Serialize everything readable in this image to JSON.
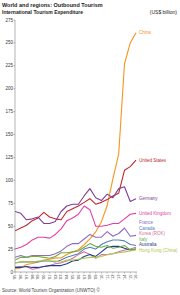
{
  "chart_data": {
    "type": "line",
    "title": "World and regions: Outbound Tourism",
    "subtitle": "International Tourism Expenditure",
    "y_label": "(US$ billion)",
    "source": "Source: World Tourism Organization (UNWTO) ©",
    "categories": [
      "'95",
      "'96",
      "'97",
      "'98",
      "'99",
      "'00",
      "'01",
      "'02",
      "'03",
      "'04",
      "'05",
      "'06",
      "'07",
      "'08",
      "'09",
      "'10",
      "'11",
      "'12",
      "'13",
      "'14",
      "'15",
      "'16"
    ],
    "ylim": [
      0,
      275
    ],
    "yticks": [
      0,
      25,
      50,
      75,
      100,
      125,
      150,
      175,
      200,
      225,
      250,
      275
    ],
    "grid": false,
    "series": [
      {
        "name": "China",
        "color": "#f7941d",
        "values": [
          3.7,
          4.5,
          8.1,
          9.2,
          10.9,
          13.1,
          13.9,
          15.4,
          15.2,
          19.1,
          21.8,
          24.3,
          29.8,
          36.2,
          43.7,
          54.9,
          72.6,
          102,
          129,
          227,
          250,
          261
        ]
      },
      {
        "name": "United States",
        "color": "#c0282d",
        "values": [
          45,
          48,
          51,
          56,
          59,
          65,
          60,
          58,
          57,
          66,
          69,
          72,
          76,
          80,
          74,
          76,
          79,
          83,
          86,
          111,
          115,
          122
        ]
      },
      {
        "name": "Germany",
        "color": "#7f3f98",
        "values": [
          66,
          64,
          57,
          58,
          60,
          53,
          53,
          55,
          66,
          72,
          74,
          74,
          83,
          91,
          81,
          78,
          85,
          81,
          91,
          93,
          77,
          80
        ]
      },
      {
        "name": "United Kingdom",
        "color": "#e23fa6",
        "values": [
          25,
          27,
          30,
          35,
          38,
          38,
          37,
          41,
          47,
          56,
          59,
          63,
          72,
          68,
          50,
          50,
          51,
          53,
          53,
          58,
          63,
          64
        ]
      },
      {
        "name": "France",
        "color": "#8e6bbf",
        "values": [
          16,
          18,
          16,
          18,
          18,
          18,
          18,
          20,
          23,
          28,
          31,
          31,
          36,
          41,
          38,
          38,
          44,
          39,
          42,
          48,
          39,
          40
        ]
      },
      {
        "name": "Canada",
        "color": "#4f81bd",
        "values": [
          10,
          11,
          11,
          11,
          11,
          12,
          12,
          11,
          13,
          16,
          18,
          20,
          25,
          27,
          25,
          30,
          33,
          35,
          35,
          34,
          30,
          29
        ]
      },
      {
        "name": "Korea (ROK)",
        "color": "#d46fa0",
        "values": [
          5,
          6,
          6,
          3,
          4,
          6,
          7,
          9,
          10,
          12,
          15,
          19,
          22,
          19,
          15,
          19,
          19,
          20,
          22,
          24,
          25,
          27
        ]
      },
      {
        "name": "Australia",
        "color": "#1f3f8f",
        "values": [
          5,
          5,
          6,
          5,
          5,
          6,
          7,
          7,
          7,
          9,
          12,
          13,
          17,
          19,
          17,
          22,
          27,
          28,
          28,
          26,
          24,
          25
        ]
      },
      {
        "name": "Italy",
        "color": "#6fae3f",
        "values": [
          13,
          16,
          16,
          17,
          17,
          16,
          15,
          17,
          21,
          21,
          22,
          23,
          27,
          31,
          28,
          27,
          29,
          26,
          27,
          29,
          24,
          25
        ]
      },
      {
        "name": "Hong Kong (China)",
        "color": "#b0c94f",
        "values": [
          10,
          11,
          11,
          11,
          12,
          12,
          12,
          12,
          11,
          13,
          13,
          14,
          15,
          16,
          16,
          17,
          19,
          20,
          21,
          22,
          23,
          24
        ]
      }
    ]
  }
}
